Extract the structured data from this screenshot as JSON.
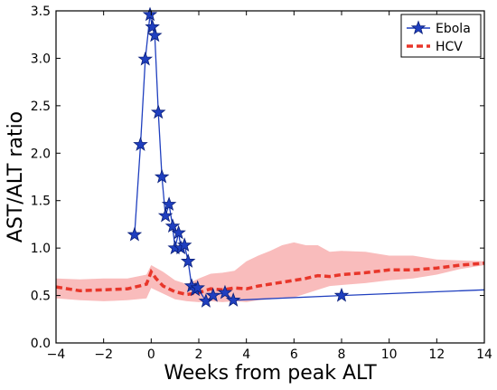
{
  "chart_data": {
    "type": "line",
    "title": "",
    "xlabel": "Weeks from peak ALT",
    "ylabel": "AST/ALT ratio",
    "xlim": [
      -4,
      14
    ],
    "ylim": [
      0,
      3.5
    ],
    "x_ticks": [
      -4,
      -2,
      0,
      2,
      4,
      6,
      8,
      10,
      12,
      14
    ],
    "x_tick_labels": [
      "−4",
      "−2",
      "0",
      "2",
      "4",
      "6",
      "8",
      "10",
      "12",
      "14"
    ],
    "y_ticks": [
      0,
      0.5,
      1,
      1.5,
      2,
      2.5,
      3,
      3.5
    ],
    "y_tick_labels": [
      "0.0",
      "0.5",
      "1.0",
      "1.5",
      "2.0",
      "2.5",
      "3.0",
      "3.5"
    ],
    "grid": false,
    "legend_position": "top-right",
    "series": [
      {
        "name": "Ebola",
        "color": "#1f3fbf",
        "marker": "star",
        "line_style": "solid",
        "points": [
          [
            -0.7,
            1.14
          ],
          [
            -0.45,
            2.09
          ],
          [
            -0.25,
            2.99
          ],
          [
            -0.05,
            3.46
          ],
          [
            0.05,
            3.33
          ],
          [
            0.15,
            3.24
          ],
          [
            0.3,
            2.43
          ],
          [
            0.45,
            1.75
          ],
          [
            0.6,
            1.34
          ],
          [
            0.75,
            1.46
          ],
          [
            0.9,
            1.23
          ],
          [
            1.0,
            1.0
          ],
          [
            1.15,
            1.16
          ],
          [
            1.25,
            1.0
          ],
          [
            1.4,
            1.03
          ],
          [
            1.55,
            0.86
          ],
          [
            1.7,
            0.6
          ],
          [
            1.85,
            0.56
          ],
          [
            1.95,
            0.58
          ],
          [
            2.3,
            0.44
          ],
          [
            2.6,
            0.5
          ],
          [
            3.1,
            0.53
          ],
          [
            3.45,
            0.45
          ],
          [
            8.0,
            0.5
          ],
          [
            14.0,
            0.56
          ]
        ],
        "marker_points": [
          [
            -0.7,
            1.14
          ],
          [
            -0.45,
            2.09
          ],
          [
            -0.25,
            2.99
          ],
          [
            -0.05,
            3.46
          ],
          [
            0.05,
            3.33
          ],
          [
            0.15,
            3.24
          ],
          [
            0.3,
            2.43
          ],
          [
            0.45,
            1.75
          ],
          [
            0.6,
            1.34
          ],
          [
            0.75,
            1.46
          ],
          [
            0.9,
            1.23
          ],
          [
            1.0,
            1.0
          ],
          [
            1.15,
            1.16
          ],
          [
            1.25,
            1.0
          ],
          [
            1.4,
            1.03
          ],
          [
            1.55,
            0.86
          ],
          [
            1.7,
            0.6
          ],
          [
            1.85,
            0.56
          ],
          [
            1.95,
            0.58
          ],
          [
            2.3,
            0.44
          ],
          [
            2.6,
            0.5
          ],
          [
            3.1,
            0.53
          ],
          [
            3.45,
            0.45
          ],
          [
            8.0,
            0.5
          ]
        ]
      },
      {
        "name": "HCV",
        "color": "#e8362a",
        "line_style": "dashed",
        "points": [
          [
            -4,
            0.59
          ],
          [
            -3,
            0.55
          ],
          [
            -2,
            0.56
          ],
          [
            -1,
            0.57
          ],
          [
            -0.5,
            0.6
          ],
          [
            -0.2,
            0.62
          ],
          [
            0,
            0.75
          ],
          [
            0.2,
            0.68
          ],
          [
            0.5,
            0.6
          ],
          [
            1,
            0.54
          ],
          [
            1.5,
            0.51
          ],
          [
            2,
            0.53
          ],
          [
            2.5,
            0.57
          ],
          [
            3,
            0.56
          ],
          [
            3.5,
            0.58
          ],
          [
            4,
            0.57
          ],
          [
            4.5,
            0.6
          ],
          [
            5,
            0.62
          ],
          [
            5.5,
            0.64
          ],
          [
            6,
            0.66
          ],
          [
            6.5,
            0.68
          ],
          [
            7,
            0.71
          ],
          [
            7.5,
            0.7
          ],
          [
            8,
            0.72
          ],
          [
            9,
            0.74
          ],
          [
            10,
            0.77
          ],
          [
            11,
            0.77
          ],
          [
            12,
            0.79
          ],
          [
            13,
            0.82
          ],
          [
            14,
            0.84
          ]
        ],
        "band_color": "#f7a6a6",
        "band_upper": [
          [
            -4,
            0.68
          ],
          [
            -3,
            0.67
          ],
          [
            -2,
            0.68
          ],
          [
            -1,
            0.68
          ],
          [
            -0.2,
            0.72
          ],
          [
            0,
            0.82
          ],
          [
            0.5,
            0.75
          ],
          [
            1,
            0.66
          ],
          [
            1.5,
            0.62
          ],
          [
            2,
            0.68
          ],
          [
            2.5,
            0.73
          ],
          [
            3,
            0.74
          ],
          [
            3.5,
            0.76
          ],
          [
            4,
            0.86
          ],
          [
            4.5,
            0.92
          ],
          [
            5,
            0.97
          ],
          [
            5.5,
            1.03
          ],
          [
            6,
            1.06
          ],
          [
            6.5,
            1.03
          ],
          [
            7,
            1.03
          ],
          [
            7.5,
            0.96
          ],
          [
            8,
            0.97
          ],
          [
            9,
            0.96
          ],
          [
            10,
            0.92
          ],
          [
            11,
            0.92
          ],
          [
            12,
            0.88
          ],
          [
            13,
            0.87
          ],
          [
            14,
            0.86
          ]
        ],
        "band_lower": [
          [
            -4,
            0.47
          ],
          [
            -3,
            0.45
          ],
          [
            -2,
            0.44
          ],
          [
            -1,
            0.45
          ],
          [
            -0.2,
            0.47
          ],
          [
            0,
            0.58
          ],
          [
            0.5,
            0.52
          ],
          [
            1,
            0.46
          ],
          [
            1.5,
            0.44
          ],
          [
            2,
            0.43
          ],
          [
            2.5,
            0.44
          ],
          [
            3,
            0.43
          ],
          [
            3.5,
            0.44
          ],
          [
            4,
            0.43
          ],
          [
            4.5,
            0.45
          ],
          [
            5,
            0.46
          ],
          [
            5.5,
            0.48
          ],
          [
            6,
            0.48
          ],
          [
            6.5,
            0.52
          ],
          [
            7,
            0.56
          ],
          [
            7.5,
            0.6
          ],
          [
            8,
            0.61
          ],
          [
            9,
            0.63
          ],
          [
            10,
            0.66
          ],
          [
            11,
            0.68
          ],
          [
            12,
            0.72
          ],
          [
            13,
            0.78
          ],
          [
            14,
            0.82
          ]
        ]
      }
    ]
  }
}
